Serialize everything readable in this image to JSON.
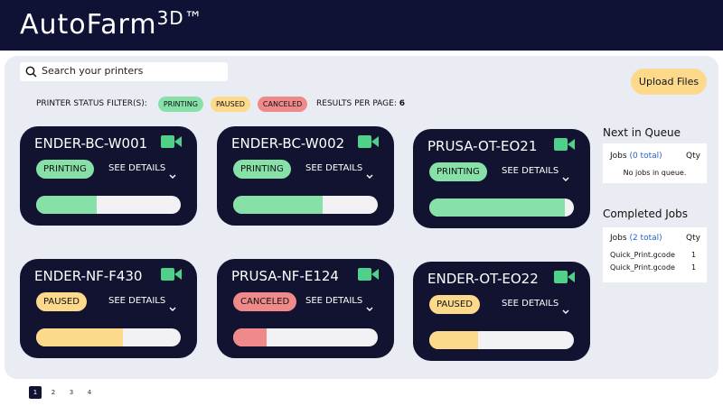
{
  "header": {
    "title": "AutoFarm",
    "title_sup": "3D™"
  },
  "search": {
    "placeholder": "Search your printers"
  },
  "upload_button": "Upload Files",
  "filters": {
    "label": "PRINTER STATUS FILTER(S):",
    "options": [
      {
        "label": "PRINTING",
        "color": "#86e0a8"
      },
      {
        "label": "PAUSED",
        "color": "#fcd98b"
      },
      {
        "label": "CANCELED",
        "color": "#f08a8a"
      }
    ]
  },
  "results_per_page": {
    "label": "RESULTS PER PAGE:",
    "value": 6
  },
  "printers": [
    {
      "name": "ENDER-BC-W001",
      "status": "PRINTING",
      "status_color": "#86e0a8",
      "details": "SEE DETAILS",
      "progress": 42
    },
    {
      "name": "ENDER-BC-W002",
      "status": "PRINTING",
      "status_color": "#86e0a8",
      "details": "SEE DETAILS",
      "progress": 62
    },
    {
      "name": "PRUSA-OT-EO21",
      "status": "PRINTING",
      "status_color": "#86e0a8",
      "details": "SEE DETAILS",
      "progress": 94
    },
    {
      "name": "ENDER-NF-F430",
      "status": "PAUSED",
      "status_color": "#fcd98b",
      "details": "SEE DETAILS",
      "progress": 60
    },
    {
      "name": "PRUSA-NF-E124",
      "status": "CANCELED",
      "status_color": "#f08a8a",
      "details": "SEE DETAILS",
      "progress": 23
    },
    {
      "name": "ENDER-OT-EO22",
      "status": "PAUSED",
      "status_color": "#fcd98b",
      "details": "SEE DETAILS",
      "progress": 34
    }
  ],
  "queue": {
    "title": "Next in Queue",
    "jobs_label": "Jobs",
    "count_label": "(0 total)",
    "qty_label": "Qty",
    "empty": "No jobs in queue."
  },
  "completed": {
    "title": "Completed Jobs",
    "jobs_label": "Jobs",
    "count_label": "(2 total)",
    "qty_label": "Qty",
    "rows": [
      {
        "file": "Quick_Print.gcode",
        "qty": 1
      },
      {
        "file": "Quick_Print.gcode",
        "qty": 1
      }
    ]
  },
  "pagination": [
    1,
    2,
    3,
    4
  ]
}
